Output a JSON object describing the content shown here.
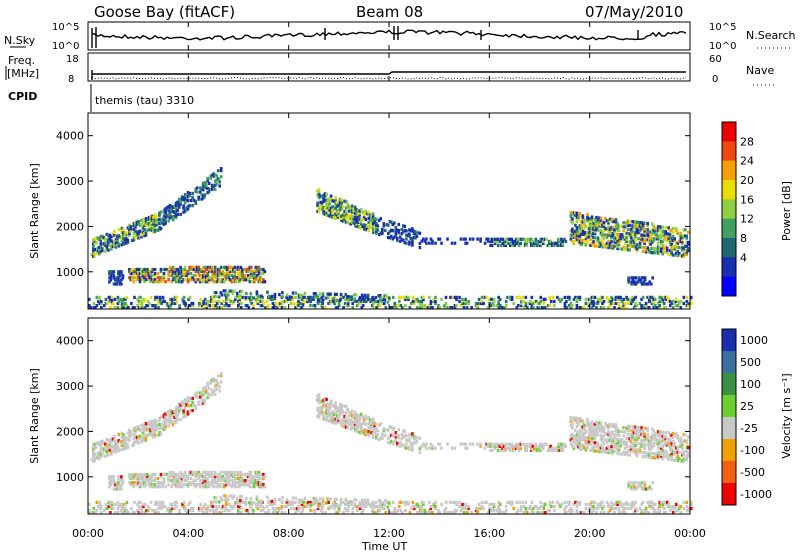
{
  "header": {
    "station": "Goose Bay (fitACF)",
    "beam": "Beam 08",
    "date": "07/May/2010"
  },
  "top_panels": {
    "nsky_label": "N.Sky",
    "nsky_ticks": [
      "10^5",
      "10^0"
    ],
    "nsearch_label": "N.Search",
    "freq_label_line1": "Freq.",
    "freq_label_line2": "[MHz]",
    "freq_ticks": [
      "18",
      "8"
    ],
    "nave_label": "Nave",
    "nave_ticks": [
      "60",
      "0"
    ],
    "cpid_label": "CPID",
    "cpid_value": "themis (tau) 3310"
  },
  "power_panel": {
    "ylabel": "Slant Range [km]",
    "yticks": [
      "4000",
      "3000",
      "2000",
      "1000"
    ],
    "colorbar_label": "Power [dB]",
    "colorbar_ticks": [
      "28",
      "24",
      "20",
      "16",
      "12",
      "8",
      "4"
    ],
    "colorbar_colors": [
      "#ee0000",
      "#f04810",
      "#f5a000",
      "#e8dc00",
      "#8ed040",
      "#40a060",
      "#206870",
      "#1830b0",
      "#0000ff"
    ]
  },
  "velocity_panel": {
    "ylabel": "Slant Range [km]",
    "yticks": [
      "4000",
      "3000",
      "2000",
      "1000"
    ],
    "colorbar_label": "Velocity [m s⁻¹]",
    "colorbar_ticks": [
      "1000",
      "500",
      "100",
      "25",
      "-25",
      "-100",
      "-500",
      "-1000"
    ],
    "colorbar_colors": [
      "#1830b0",
      "#3a70a0",
      "#3a9040",
      "#6ad030",
      "#c8c8c8",
      "#f0a000",
      "#f06010",
      "#ee0000"
    ]
  },
  "xaxis": {
    "label": "Time UT",
    "ticks": [
      "00:00",
      "04:00",
      "08:00",
      "12:00",
      "16:00",
      "20:00",
      "00:00"
    ]
  },
  "chart_data": {
    "type": "heatmap",
    "x_range_hours": [
      0,
      24
    ],
    "y_range_km": [
      180,
      4500
    ],
    "scatter_regions": [
      {
        "t0": 0.0,
        "t1": 5.5,
        "r0": 1300,
        "r1": 3300,
        "note": "rising band"
      },
      {
        "t0": 1.5,
        "t1": 7.0,
        "r0": 750,
        "r1": 1050,
        "note": "lower patch"
      },
      {
        "t0": 9.0,
        "t1": 13.0,
        "r0": 1700,
        "r1": 2800,
        "note": "descending band"
      },
      {
        "t0": 16.0,
        "t1": 19.0,
        "r0": 1550,
        "r1": 1700,
        "note": "thin band"
      },
      {
        "t0": 20.0,
        "t1": 24.0,
        "r0": 1300,
        "r1": 2300,
        "note": "late echoes"
      },
      {
        "t0": 0.0,
        "t1": 24.0,
        "r0": 180,
        "r1": 450,
        "note": "ground scatter"
      }
    ]
  }
}
